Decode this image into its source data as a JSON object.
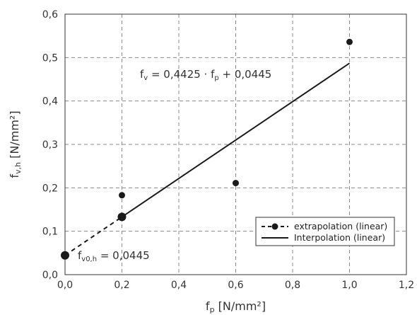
{
  "chart_data": {
    "type": "scatter",
    "xlabel": {
      "base": "f",
      "sub": "p",
      "unit": " [N/mm²]"
    },
    "ylabel": {
      "base": "f",
      "sub": "v,h",
      "unit": " [N/mm²]"
    },
    "xlim": [
      0,
      1.2
    ],
    "ylim": [
      0,
      0.6
    ],
    "xticks": [
      "0,0",
      "0,2",
      "0,4",
      "0,6",
      "0,8",
      "1,0",
      "1,2"
    ],
    "yticks": [
      "0,0",
      "0,1",
      "0,2",
      "0,3",
      "0,4",
      "0,5",
      "0,6"
    ],
    "grid": true,
    "legend_position": "bottom-right",
    "points": [
      {
        "x": 0.2,
        "y": 0.183
      },
      {
        "x": 0.2,
        "y": 0.133
      },
      {
        "x": 0.6,
        "y": 0.211
      },
      {
        "x": 1.0,
        "y": 0.536
      }
    ],
    "intercept_point": {
      "x": 0.0,
      "y": 0.0445
    },
    "series": [
      {
        "name": "extrapolation (linear)",
        "style": "dashed-with-markers",
        "x": [
          0.0,
          0.2
        ],
        "y": [
          0.0445,
          0.133
        ]
      },
      {
        "name": "Interpolation (linear)",
        "style": "solid",
        "x": [
          0.2,
          1.0
        ],
        "y": [
          0.133,
          0.487
        ]
      }
    ],
    "equation": {
      "parts": [
        "f",
        "v",
        " = 0,4425 · f",
        "p",
        " + 0,0445"
      ]
    },
    "intercept_label": {
      "base": "f",
      "sub": "v0,h",
      "rest": " = 0,0445"
    },
    "colors": {
      "marks": "#1a1a1a",
      "grid": "#888888"
    }
  }
}
